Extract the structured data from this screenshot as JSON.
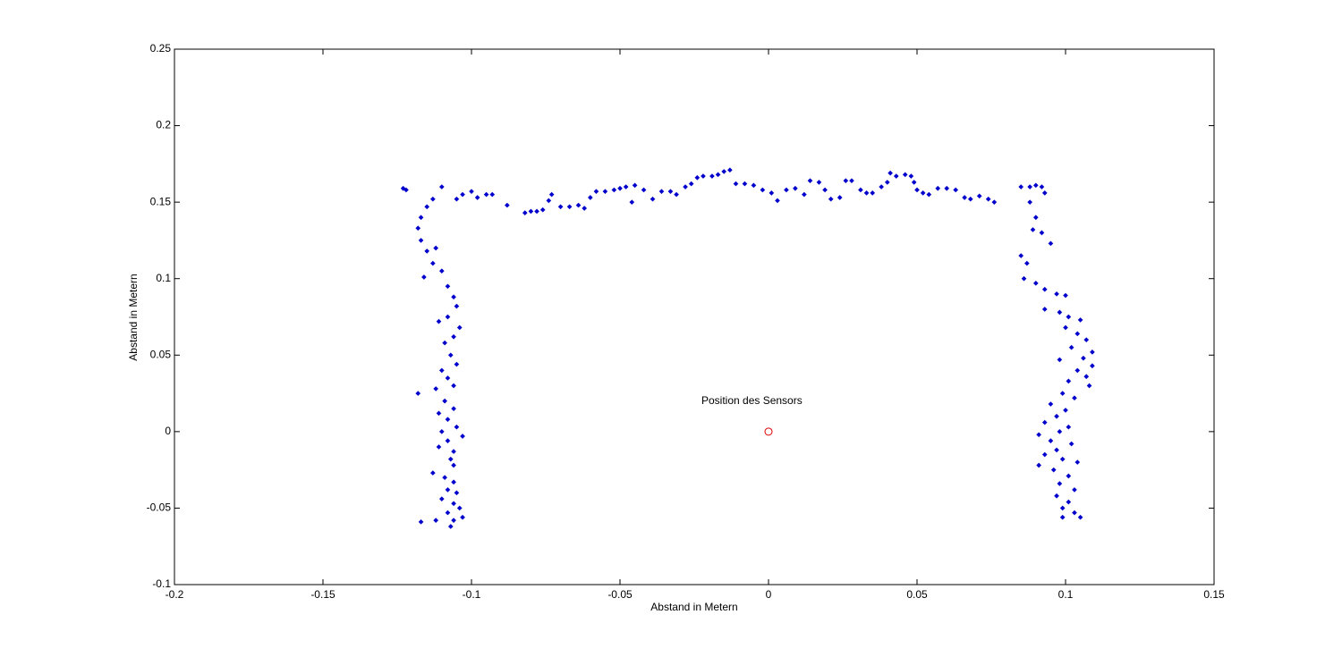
{
  "chart_data": {
    "type": "scatter",
    "xlabel": "Abstand in Metern",
    "ylabel": "Abstand in Metern",
    "xlim": [
      -0.2,
      0.15
    ],
    "ylim": [
      -0.1,
      0.25
    ],
    "xticks": [
      -0.2,
      -0.15,
      -0.1,
      -0.05,
      0,
      0.05,
      0.1,
      0.15
    ],
    "yticks": [
      -0.1,
      -0.05,
      0,
      0.05,
      0.1,
      0.15,
      0.2,
      0.25
    ],
    "grid": false,
    "annotations": [
      {
        "text": "Position des Sensors"
      }
    ],
    "series": [
      {
        "color": "#0000cc",
        "marker": "point",
        "x": [
          -0.123,
          -0.122,
          -0.11,
          -0.105,
          -0.103,
          -0.1,
          -0.098,
          -0.095,
          -0.093,
          -0.088,
          -0.082,
          -0.08,
          -0.078,
          -0.076,
          -0.074,
          -0.073,
          -0.07,
          -0.067,
          -0.064,
          -0.062,
          -0.06,
          -0.058,
          -0.055,
          -0.052,
          -0.05,
          -0.048,
          -0.046,
          -0.045,
          -0.042,
          -0.039,
          -0.036,
          -0.033,
          -0.031,
          -0.028,
          -0.026,
          -0.024,
          -0.022,
          -0.019,
          -0.017,
          -0.015,
          -0.013,
          -0.011,
          -0.008,
          -0.005,
          -0.002,
          0.001,
          0.003,
          0.006,
          0.009,
          0.012,
          0.014,
          0.017,
          0.019,
          0.021,
          0.024,
          0.026,
          0.028,
          0.031,
          0.033,
          0.035,
          0.038,
          0.04,
          0.041,
          0.043,
          0.046,
          0.048,
          0.049,
          0.05,
          0.052,
          0.054,
          0.057,
          0.06,
          0.063,
          0.066,
          0.068,
          0.071,
          0.074,
          0.076,
          0.085,
          0.088,
          0.09,
          0.092,
          0.093,
          -0.118,
          -0.117,
          -0.115,
          -0.113,
          -0.117,
          -0.115,
          -0.112,
          -0.113,
          -0.116,
          -0.11,
          -0.108,
          -0.106,
          -0.105,
          -0.108,
          -0.111,
          -0.104,
          -0.106,
          -0.109,
          -0.107,
          -0.105,
          -0.11,
          -0.108,
          -0.106,
          -0.112,
          -0.118,
          -0.109,
          -0.106,
          -0.111,
          -0.108,
          -0.105,
          -0.11,
          -0.103,
          -0.108,
          -0.111,
          -0.106,
          -0.107,
          -0.106,
          -0.113,
          -0.109,
          -0.106,
          -0.108,
          -0.105,
          -0.11,
          -0.106,
          -0.104,
          -0.108,
          -0.103,
          -0.106,
          -0.117,
          -0.112,
          -0.107,
          0.088,
          0.09,
          0.089,
          0.092,
          0.095,
          0.085,
          0.087,
          0.086,
          0.09,
          0.093,
          0.097,
          0.1,
          0.093,
          0.098,
          0.101,
          0.105,
          0.1,
          0.104,
          0.107,
          0.102,
          0.109,
          0.106,
          0.098,
          0.109,
          0.104,
          0.107,
          0.101,
          0.108,
          0.099,
          0.103,
          0.095,
          0.1,
          0.097,
          0.093,
          0.101,
          0.098,
          0.091,
          0.095,
          0.102,
          0.097,
          0.093,
          0.099,
          0.091,
          0.104,
          0.096,
          0.101,
          0.098,
          0.103,
          0.097,
          0.101,
          0.099,
          0.103,
          0.099,
          0.105
        ],
        "values": [
          0.159,
          0.158,
          0.16,
          0.152,
          0.155,
          0.157,
          0.153,
          0.155,
          0.155,
          0.148,
          0.143,
          0.144,
          0.144,
          0.145,
          0.151,
          0.155,
          0.147,
          0.147,
          0.148,
          0.146,
          0.153,
          0.157,
          0.157,
          0.158,
          0.159,
          0.16,
          0.15,
          0.161,
          0.158,
          0.152,
          0.157,
          0.157,
          0.155,
          0.16,
          0.162,
          0.166,
          0.167,
          0.167,
          0.168,
          0.17,
          0.171,
          0.162,
          0.162,
          0.161,
          0.158,
          0.156,
          0.151,
          0.158,
          0.159,
          0.155,
          0.164,
          0.163,
          0.158,
          0.152,
          0.153,
          0.164,
          0.164,
          0.158,
          0.156,
          0.156,
          0.16,
          0.163,
          0.169,
          0.167,
          0.168,
          0.167,
          0.163,
          0.158,
          0.156,
          0.155,
          0.159,
          0.159,
          0.158,
          0.153,
          0.152,
          0.154,
          0.152,
          0.15,
          0.16,
          0.16,
          0.161,
          0.16,
          0.156,
          0.133,
          0.14,
          0.147,
          0.152,
          0.125,
          0.118,
          0.12,
          0.11,
          0.101,
          0.105,
          0.095,
          0.088,
          0.082,
          0.075,
          0.072,
          0.068,
          0.062,
          0.058,
          0.05,
          0.044,
          0.04,
          0.035,
          0.03,
          0.028,
          0.025,
          0.02,
          0.015,
          0.012,
          0.008,
          0.003,
          0.0,
          -0.003,
          -0.006,
          -0.01,
          -0.013,
          -0.018,
          -0.022,
          -0.027,
          -0.03,
          -0.033,
          -0.038,
          -0.04,
          -0.044,
          -0.047,
          -0.05,
          -0.053,
          -0.056,
          -0.058,
          -0.059,
          -0.058,
          -0.062,
          0.15,
          0.14,
          0.132,
          0.13,
          0.123,
          0.115,
          0.11,
          0.1,
          0.097,
          0.093,
          0.09,
          0.089,
          0.08,
          0.078,
          0.075,
          0.073,
          0.068,
          0.064,
          0.06,
          0.055,
          0.052,
          0.048,
          0.047,
          0.043,
          0.04,
          0.036,
          0.033,
          0.03,
          0.025,
          0.022,
          0.018,
          0.014,
          0.01,
          0.006,
          0.003,
          0.0,
          -0.002,
          -0.006,
          -0.008,
          -0.012,
          -0.015,
          -0.018,
          -0.022,
          -0.02,
          -0.025,
          -0.029,
          -0.034,
          -0.038,
          -0.042,
          -0.046,
          -0.05,
          -0.053,
          -0.056,
          -0.056
        ]
      },
      {
        "color": "#dd0000",
        "marker": "circle",
        "x": [
          0
        ],
        "values": [
          0
        ]
      }
    ]
  }
}
